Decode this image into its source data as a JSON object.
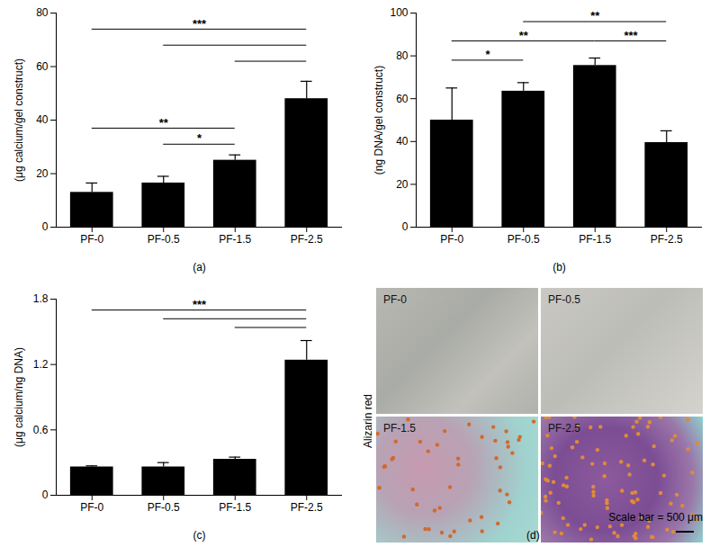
{
  "chart_data": [
    {
      "type": "bar",
      "categories": [
        "PF-0",
        "PF-0.5",
        "PF-1.5",
        "PF-2.5"
      ],
      "values": [
        13,
        16.5,
        25,
        48
      ],
      "errors": [
        3.5,
        2.5,
        2,
        6.5
      ],
      "color": "#000000",
      "ylabel": "(μg calcium/gel construct)",
      "xlabel": "(a)",
      "ylim": [
        0,
        80
      ],
      "yticks": [
        0,
        20,
        40,
        60,
        80
      ],
      "significance": [
        {
          "from": "PF-0",
          "to": "PF-2.5",
          "y": 74,
          "label": "***"
        },
        {
          "from": "PF-0.5",
          "to": "PF-2.5",
          "y": 68
        },
        {
          "from": "PF-1.5",
          "to": "PF-2.5",
          "y": 62
        },
        {
          "from": "PF-0",
          "to": "PF-1.5",
          "y": 37,
          "label": "**"
        },
        {
          "from": "PF-0.5",
          "to": "PF-1.5",
          "y": 31,
          "label": "*"
        }
      ]
    },
    {
      "type": "bar",
      "categories": [
        "PF-0",
        "PF-0.5",
        "PF-1.5",
        "PF-2.5"
      ],
      "values": [
        50,
        63.5,
        75.5,
        39.5
      ],
      "errors": [
        15,
        4,
        3.5,
        5.5
      ],
      "color": "#000000",
      "ylabel": "(ng DNA/gel construct)",
      "xlabel": "(b)",
      "ylim": [
        0,
        100
      ],
      "yticks": [
        0,
        20,
        40,
        60,
        80,
        100
      ],
      "significance": [
        {
          "from": "PF-0.5",
          "to": "PF-2.5",
          "y": 96,
          "label": "**"
        },
        {
          "from": "PF-0",
          "to": "PF-1.5",
          "y": 87,
          "label": "**"
        },
        {
          "from": "PF-1.5",
          "to": "PF-2.5",
          "y": 87,
          "label": "***"
        },
        {
          "from": "PF-0",
          "to": "PF-0.5",
          "y": 78,
          "label": "*"
        }
      ]
    },
    {
      "type": "bar",
      "categories": [
        "PF-0",
        "PF-0.5",
        "PF-1.5",
        "PF-2.5"
      ],
      "values": [
        0.26,
        0.26,
        0.33,
        1.24
      ],
      "errors": [
        0.01,
        0.04,
        0.02,
        0.18
      ],
      "color": "#000000",
      "ylabel": "(μg calcium/ng DNA)",
      "xlabel": "(c)",
      "ylim": [
        0,
        1.8
      ],
      "yticks": [
        0,
        0.6,
        1.2,
        1.8
      ],
      "significance": [
        {
          "from": "PF-0",
          "to": "PF-2.5",
          "y": 1.7,
          "label": "***"
        },
        {
          "from": "PF-0.5",
          "to": "PF-2.5",
          "y": 1.62
        },
        {
          "from": "PF-1.5",
          "to": "PF-2.5",
          "y": 1.54
        }
      ]
    }
  ],
  "image_panel": {
    "caption": "(d)",
    "stain": "Alizarin red",
    "tiles": [
      "PF-0",
      "PF-0.5",
      "PF-1.5",
      "PF-2.5"
    ],
    "scale_bar": "Scale bar = 500 μm"
  }
}
